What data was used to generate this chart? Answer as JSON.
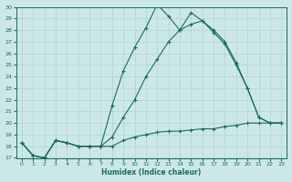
{
  "xlabel": "Humidex (Indice chaleur)",
  "bg_color": "#cce8e6",
  "line_color": "#1a6b5e",
  "grid_color": "#afd4d0",
  "xlim": [
    -0.5,
    23.5
  ],
  "ylim": [
    17,
    30
  ],
  "yticks": [
    17,
    18,
    19,
    20,
    21,
    22,
    23,
    24,
    25,
    26,
    27,
    28,
    29,
    30
  ],
  "xticks": [
    0,
    1,
    2,
    3,
    4,
    5,
    6,
    7,
    8,
    9,
    10,
    11,
    12,
    13,
    14,
    15,
    16,
    17,
    18,
    19,
    20,
    21,
    22,
    23
  ],
  "lines": [
    {
      "x": [
        0,
        1,
        2,
        3,
        4,
        5,
        6,
        7,
        8,
        9,
        10,
        11,
        12,
        13,
        14,
        15,
        16,
        17,
        18,
        19,
        20,
        21,
        22,
        23
      ],
      "y": [
        18.3,
        17.2,
        17.0,
        18.5,
        18.3,
        18.0,
        18.0,
        18.0,
        18.0,
        18.5,
        18.8,
        19.0,
        19.2,
        19.3,
        19.3,
        19.4,
        19.5,
        19.5,
        19.7,
        19.8,
        20.0,
        20.0,
        20.0,
        20.0
      ]
    },
    {
      "x": [
        0,
        1,
        2,
        3,
        4,
        5,
        6,
        7,
        8,
        9,
        10,
        11,
        12,
        13,
        14,
        15,
        16,
        17,
        18,
        19,
        20,
        21,
        22,
        23
      ],
      "y": [
        18.3,
        17.2,
        17.0,
        18.5,
        18.3,
        18.0,
        18.0,
        18.0,
        18.8,
        20.5,
        22.0,
        24.0,
        25.5,
        27.0,
        28.0,
        28.5,
        28.8,
        28.0,
        27.0,
        25.2,
        23.0,
        20.5,
        20.0,
        20.0
      ]
    },
    {
      "x": [
        0,
        1,
        2,
        3,
        4,
        5,
        6,
        7,
        8,
        9,
        10,
        11,
        12,
        13,
        14,
        15,
        16,
        17,
        18,
        19,
        20,
        21,
        22,
        23
      ],
      "y": [
        18.3,
        17.2,
        17.0,
        18.5,
        18.3,
        18.0,
        18.0,
        18.0,
        21.5,
        24.5,
        26.5,
        28.2,
        30.2,
        29.2,
        28.0,
        29.5,
        28.8,
        27.8,
        26.8,
        25.0,
        23.0,
        20.5,
        20.0,
        20.0
      ]
    }
  ]
}
